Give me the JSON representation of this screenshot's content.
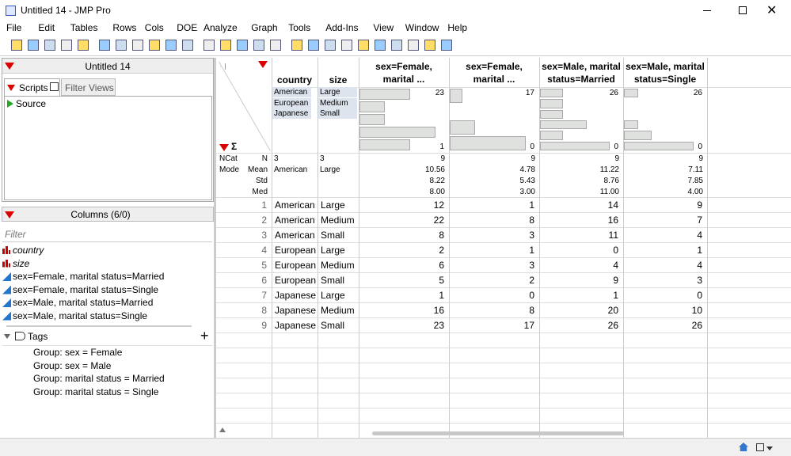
{
  "window": {
    "title": "Untitled 14 - JMP Pro"
  },
  "menu": [
    "File",
    "Edit",
    "Tables",
    "Rows",
    "Cols",
    "DOE",
    "Analyze",
    "Graph",
    "Tools",
    "Add-Ins",
    "View",
    "Window",
    "Help"
  ],
  "left_panel": {
    "table_name": "Untitled 14",
    "tabs": [
      "Scripts",
      "Filter Views"
    ],
    "scripts": [
      "Source"
    ],
    "columns_header": "Columns (6/0)",
    "filter_placeholder": "Filter",
    "columns": [
      {
        "name": "country",
        "type": "nominal"
      },
      {
        "name": "size",
        "type": "nominal"
      },
      {
        "name": "sex=Female, marital status=Married",
        "type": "continuous"
      },
      {
        "name": "sex=Female, marital status=Single",
        "type": "continuous"
      },
      {
        "name": "sex=Male, marital status=Married",
        "type": "continuous"
      },
      {
        "name": "sex=Male, marital status=Single",
        "type": "continuous"
      }
    ],
    "tags_header": "Tags",
    "tags": [
      "Group: sex = Female",
      "Group: sex = Male",
      "Group: marital status = Married",
      "Group: marital status = Single"
    ]
  },
  "table": {
    "headers": [
      "country",
      "size",
      "sex=Female, marital ...",
      "sex=Female, marital ...",
      "sex=Male, marital status=Married",
      "sex=Male, marital status=Single"
    ],
    "level_lists": [
      [
        "American",
        "European",
        "Japanese"
      ],
      [
        "Large",
        "Medium",
        "Small"
      ]
    ],
    "histograms": [
      {
        "max_label": 23,
        "min_label": 1,
        "counts": [
          2,
          1,
          1,
          3,
          2
        ]
      },
      {
        "max_label": 17,
        "min_label": 0,
        "counts": [
          1,
          0,
          2,
          6
        ]
      },
      {
        "max_label": 26,
        "min_label": 0,
        "counts": [
          1,
          1,
          1,
          2,
          1,
          3
        ]
      },
      {
        "max_label": 26,
        "min_label": 0,
        "counts": [
          1,
          0,
          0,
          1,
          2,
          5
        ]
      }
    ],
    "stat_labels_left": [
      "NCat",
      "Mode"
    ],
    "stat_labels": [
      "N",
      "Mean",
      "Std",
      "Med"
    ],
    "stats": [
      [
        "3",
        "American"
      ],
      [
        "3",
        "Large"
      ],
      [
        "9",
        "10.56",
        "8.22",
        "8.00"
      ],
      [
        "9",
        "4.78",
        "5.43",
        "3.00"
      ],
      [
        "9",
        "11.22",
        "8.76",
        "11.00"
      ],
      [
        "9",
        "7.11",
        "7.85",
        "4.00"
      ]
    ],
    "rows": [
      [
        1,
        "American",
        "Large",
        12,
        1,
        14,
        9
      ],
      [
        2,
        "American",
        "Medium",
        22,
        8,
        16,
        7
      ],
      [
        3,
        "American",
        "Small",
        8,
        3,
        11,
        4
      ],
      [
        4,
        "European",
        "Large",
        2,
        1,
        0,
        1
      ],
      [
        5,
        "European",
        "Medium",
        6,
        3,
        4,
        4
      ],
      [
        6,
        "European",
        "Small",
        5,
        2,
        9,
        3
      ],
      [
        7,
        "Japanese",
        "Large",
        1,
        0,
        1,
        0
      ],
      [
        8,
        "Japanese",
        "Medium",
        16,
        8,
        20,
        10
      ],
      [
        9,
        "Japanese",
        "Small",
        23,
        17,
        26,
        26
      ]
    ]
  }
}
